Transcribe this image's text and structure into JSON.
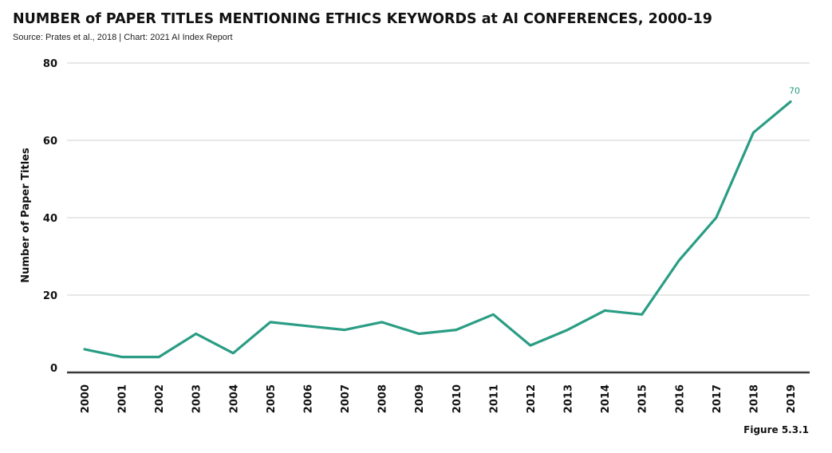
{
  "header": {
    "title": "NUMBER of PAPER TITLES MENTIONING ETHICS KEYWORDS at AI CONFERENCES, 2000-19",
    "source": "Source: Prates et al., 2018 | Chart: 2021 AI Index Report"
  },
  "footer": {
    "figure_label": "Figure 5.3.1"
  },
  "colors": {
    "line": "#2a9d84",
    "grid": "#cfcfcf",
    "axis": "#3a3a3a"
  },
  "chart_data": {
    "type": "line",
    "title": "NUMBER of PAPER TITLES MENTIONING ETHICS KEYWORDS at AI CONFERENCES, 2000-19",
    "xlabel": "",
    "ylabel": "Number of Paper Titles",
    "ylim": [
      0,
      80
    ],
    "yticks": [
      0,
      20,
      40,
      60,
      80
    ],
    "grid": true,
    "x": [
      "2000",
      "2001",
      "2002",
      "2003",
      "2004",
      "2005",
      "2006",
      "2007",
      "2008",
      "2009",
      "2010",
      "2011",
      "2012",
      "2013",
      "2014",
      "2015",
      "2016",
      "2017",
      "2018",
      "2019"
    ],
    "series": [
      {
        "values": [
          6,
          4,
          4,
          10,
          5,
          13,
          12,
          11,
          13,
          10,
          11,
          15,
          7,
          11,
          16,
          15,
          29,
          40,
          62,
          70
        ]
      }
    ],
    "annotations": [
      {
        "x": "2019",
        "value": 70,
        "text": "70"
      }
    ]
  }
}
